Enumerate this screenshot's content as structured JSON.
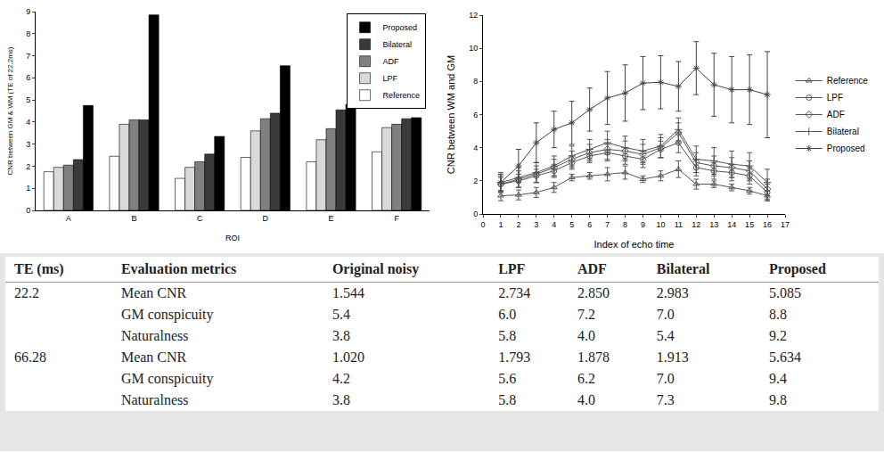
{
  "chart_data": [
    {
      "type": "bar",
      "x_label": "ROI",
      "y_label": "CNR between GM & WM (TE of 22.2ms)",
      "categories": [
        "A",
        "B",
        "C",
        "D",
        "E",
        "F"
      ],
      "series": [
        {
          "name": "Reference",
          "color": "#ffffff",
          "values": [
            1.75,
            2.45,
            1.45,
            2.4,
            2.2,
            2.65
          ]
        },
        {
          "name": "LPF",
          "color": "#d9d9d9",
          "values": [
            1.95,
            3.9,
            1.95,
            3.6,
            3.2,
            3.75
          ]
        },
        {
          "name": "ADF",
          "color": "#808080",
          "values": [
            2.05,
            4.1,
            2.2,
            4.15,
            3.7,
            3.9
          ]
        },
        {
          "name": "Bilateral",
          "color": "#3a3a3a",
          "values": [
            2.3,
            4.1,
            2.55,
            4.4,
            4.55,
            4.15
          ]
        },
        {
          "name": "Proposed",
          "color": "#000000",
          "values": [
            4.75,
            8.85,
            3.35,
            6.55,
            4.8,
            4.2
          ]
        }
      ],
      "ylim": [
        0,
        9
      ],
      "yticks": [
        0,
        1,
        2,
        3,
        4,
        5,
        6,
        7,
        8,
        9
      ],
      "grid": false,
      "legend": "upper right"
    },
    {
      "type": "line",
      "x_label": "Index of echo time",
      "y_label": "CNR between WM and GM",
      "x": [
        1,
        2,
        3,
        4,
        5,
        6,
        7,
        8,
        9,
        10,
        11,
        12,
        13,
        14,
        15,
        16
      ],
      "series": [
        {
          "name": "Reference",
          "color": "#555555",
          "marker": "triangle",
          "values": [
            1.1,
            1.15,
            1.3,
            1.6,
            2.2,
            2.3,
            2.4,
            2.5,
            2.1,
            2.3,
            2.7,
            1.8,
            1.8,
            1.6,
            1.4,
            1.1
          ],
          "errors": [
            0.3,
            0.3,
            0.3,
            0.3,
            0.2,
            0.2,
            0.4,
            0.4,
            0.2,
            0.3,
            0.5,
            0.3,
            0.2,
            0.2,
            0.2,
            0.3
          ]
        },
        {
          "name": "LPF",
          "color": "#555555",
          "marker": "circle",
          "values": [
            1.8,
            2.0,
            2.3,
            2.6,
            3.1,
            3.5,
            3.7,
            3.5,
            3.3,
            3.9,
            4.3,
            2.8,
            2.6,
            2.5,
            2.3,
            1.3
          ],
          "errors": [
            0.4,
            0.4,
            0.4,
            0.4,
            0.4,
            0.4,
            0.5,
            0.5,
            0.5,
            0.5,
            0.6,
            0.5,
            0.5,
            0.5,
            0.5,
            0.5
          ]
        },
        {
          "name": "ADF",
          "color": "#555555",
          "marker": "diamond",
          "values": [
            1.8,
            2.1,
            2.4,
            2.8,
            3.3,
            3.7,
            3.9,
            3.8,
            3.6,
            4.0,
            4.9,
            3.1,
            2.9,
            2.8,
            2.6,
            1.5
          ],
          "errors": [
            0.5,
            0.5,
            0.5,
            0.5,
            0.5,
            0.5,
            0.6,
            0.6,
            0.6,
            0.6,
            0.6,
            0.6,
            0.6,
            0.6,
            0.6,
            0.6
          ]
        },
        {
          "name": "Bilateral",
          "color": "#555555",
          "marker": "cross",
          "values": [
            1.9,
            2.2,
            2.5,
            2.9,
            3.5,
            3.9,
            4.3,
            4.0,
            3.8,
            4.1,
            5.1,
            3.3,
            3.2,
            3.0,
            2.9,
            1.9
          ],
          "errors": [
            0.6,
            0.6,
            0.6,
            0.6,
            0.6,
            0.6,
            0.7,
            0.7,
            0.7,
            0.7,
            0.7,
            0.8,
            0.8,
            0.8,
            0.8,
            0.8
          ]
        },
        {
          "name": "Proposed",
          "color": "#444444",
          "marker": "star",
          "values": [
            1.9,
            2.9,
            4.3,
            5.1,
            5.5,
            6.3,
            7.0,
            7.3,
            7.9,
            7.95,
            7.7,
            8.8,
            7.8,
            7.5,
            7.5,
            7.2
          ],
          "errors": [
            0.5,
            1.0,
            1.2,
            1.1,
            1.3,
            1.3,
            1.6,
            1.7,
            1.6,
            1.6,
            1.5,
            1.6,
            1.9,
            2.0,
            2.1,
            2.6
          ]
        }
      ],
      "xlim": [
        0,
        17
      ],
      "xticks": [
        0,
        1,
        2,
        3,
        4,
        5,
        6,
        7,
        8,
        9,
        10,
        11,
        12,
        13,
        14,
        15,
        16,
        17
      ],
      "ylim": [
        0,
        12
      ],
      "yticks": [
        0,
        2,
        4,
        6,
        8,
        10,
        12
      ],
      "grid": false,
      "legend": "right"
    }
  ],
  "table": {
    "header": [
      "TE (ms)",
      "Evaluation metrics",
      "Original noisy",
      "LPF",
      "ADF",
      "Bilateral",
      "Proposed"
    ],
    "groups": [
      {
        "te": "22.2",
        "rows": [
          [
            "Mean CNR",
            "1.544",
            "2.734",
            "2.850",
            "2.983",
            "5.085"
          ],
          [
            "GM conspicuity",
            "5.4",
            "6.0",
            "7.2",
            "7.0",
            "8.8"
          ],
          [
            "Naturalness",
            "3.8",
            "5.8",
            "4.0",
            "5.4",
            "9.2"
          ]
        ]
      },
      {
        "te": "66.28",
        "rows": [
          [
            "Mean CNR",
            "1.020",
            "1.793",
            "1.878",
            "1.913",
            "5.634"
          ],
          [
            "GM conspicuity",
            "4.2",
            "5.6",
            "6.2",
            "7.0",
            "9.4"
          ],
          [
            "Naturalness",
            "3.8",
            "5.8",
            "4.0",
            "7.3",
            "9.8"
          ]
        ]
      }
    ]
  }
}
